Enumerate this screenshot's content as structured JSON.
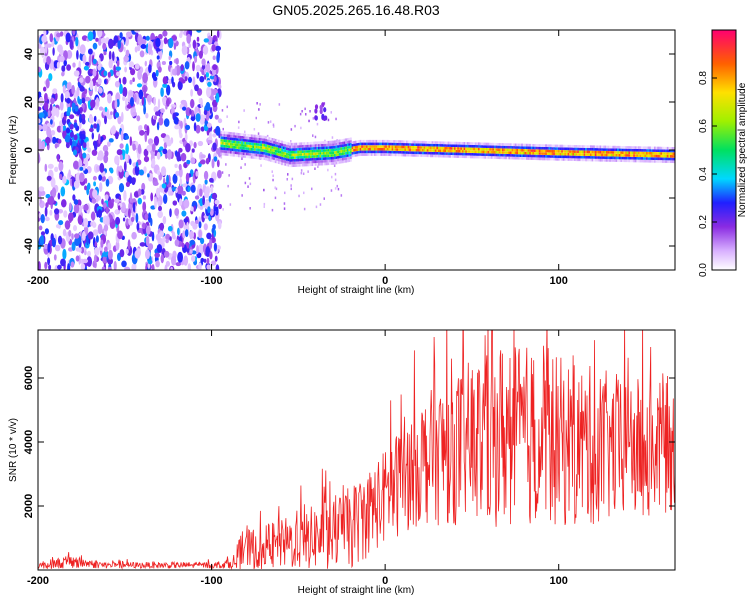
{
  "title": "GN05.2025.265.16.48.R03",
  "chart_data": [
    {
      "type": "heatmap",
      "title": "GN05.2025.265.16.48.R03",
      "xlabel": "Height of straight line (km)",
      "ylabel": "Frequency (Hz)",
      "xlim": [
        -200,
        167
      ],
      "ylim": [
        -50,
        50
      ],
      "x_ticks": [
        "-200",
        "-100",
        "0",
        "100"
      ],
      "y_ticks": [
        "-40",
        "-20",
        "0",
        "20",
        "40"
      ],
      "colorbar": {
        "label": "Normalized spectral amplitude",
        "range": [
          0,
          1
        ],
        "ticks": [
          "0.0",
          "0.2",
          "0.4",
          "0.6",
          "0.8"
        ]
      },
      "noise_region_x": [
        -200,
        -95
      ],
      "signal_track": [
        {
          "x": -95,
          "freq": 3
        },
        {
          "x": -70,
          "freq": 1
        },
        {
          "x": -55,
          "freq": -2
        },
        {
          "x": -30,
          "freq": -1
        },
        {
          "x": -15,
          "freq": 1
        },
        {
          "x": 0,
          "freq": 1
        },
        {
          "x": 50,
          "freq": 0
        },
        {
          "x": 100,
          "freq": -1
        },
        {
          "x": 167,
          "freq": -2
        }
      ]
    },
    {
      "type": "line",
      "xlabel": "Height of straight line (km)",
      "ylabel": "SNR (10 * v/v)",
      "xlim": [
        -200,
        167
      ],
      "ylim": [
        0,
        7500
      ],
      "x_ticks": [
        "-200",
        "-100",
        "0",
        "100"
      ],
      "y_ticks": [
        "2000",
        "4000",
        "6000"
      ],
      "series": [
        {
          "name": "SNR",
          "color": "#ee2222",
          "envelope": [
            {
              "x": -200,
              "mean": 150,
              "spread": 120
            },
            {
              "x": -180,
              "mean": 250,
              "spread": 200
            },
            {
              "x": -160,
              "mean": 150,
              "spread": 100
            },
            {
              "x": -100,
              "mean": 150,
              "spread": 100
            },
            {
              "x": -87,
              "mean": 200,
              "spread": 150
            },
            {
              "x": -83,
              "mean": 600,
              "spread": 600
            },
            {
              "x": -70,
              "mean": 700,
              "spread": 700
            },
            {
              "x": -50,
              "mean": 900,
              "spread": 900
            },
            {
              "x": -20,
              "mean": 1300,
              "spread": 1300
            },
            {
              "x": 0,
              "mean": 2300,
              "spread": 1500
            },
            {
              "x": 20,
              "mean": 3400,
              "spread": 2000
            },
            {
              "x": 50,
              "mean": 4000,
              "spread": 2600
            },
            {
              "x": 70,
              "mean": 4300,
              "spread": 3000
            },
            {
              "x": 100,
              "mean": 4000,
              "spread": 2700
            },
            {
              "x": 130,
              "mean": 3800,
              "spread": 2400
            },
            {
              "x": 167,
              "mean": 3800,
              "spread": 2000
            }
          ]
        }
      ]
    }
  ]
}
